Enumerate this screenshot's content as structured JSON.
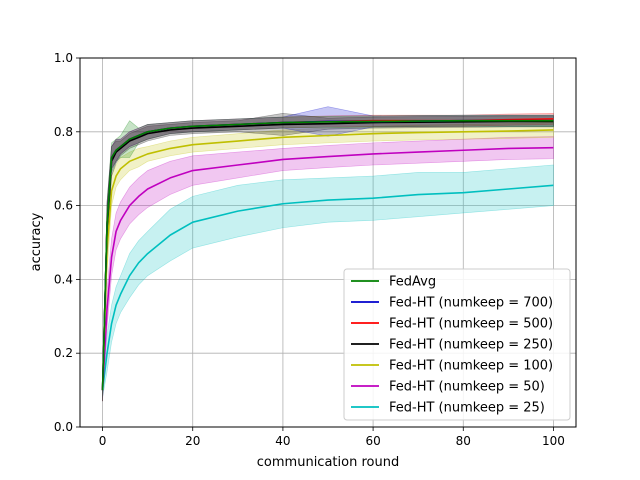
{
  "chart_data": {
    "type": "line",
    "title": "",
    "xlabel": "communication round",
    "ylabel": "accuracy",
    "xlim": [
      -5,
      105
    ],
    "ylim": [
      0.0,
      1.0
    ],
    "xticks": [
      0,
      20,
      40,
      60,
      80,
      100
    ],
    "yticks": [
      0.0,
      0.2,
      0.4,
      0.6,
      0.8,
      1.0
    ],
    "xtick_labels": [
      "0",
      "20",
      "40",
      "60",
      "80",
      "100"
    ],
    "ytick_labels": [
      "0.0",
      "0.2",
      "0.4",
      "0.6",
      "0.8",
      "1.0"
    ],
    "grid": true,
    "legend_position": "lower-right",
    "x": [
      0,
      1,
      2,
      3,
      4,
      6,
      8,
      10,
      15,
      20,
      30,
      40,
      50,
      60,
      70,
      80,
      90,
      100
    ],
    "series": [
      {
        "name": "FedAvg",
        "color": "#008000",
        "values": [
          0.1,
          0.55,
          0.73,
          0.75,
          0.76,
          0.78,
          0.79,
          0.8,
          0.81,
          0.815,
          0.82,
          0.825,
          0.827,
          0.828,
          0.829,
          0.83,
          0.83,
          0.83
        ],
        "band": [
          0.03,
          0.06,
          0.04,
          0.03,
          0.03,
          0.05,
          0.02,
          0.02,
          0.015,
          0.015,
          0.015,
          0.015,
          0.015,
          0.015,
          0.015,
          0.015,
          0.015,
          0.015
        ]
      },
      {
        "name": "Fed-HT (numkeep = 700)",
        "color": "#0000cc",
        "values": [
          0.1,
          0.55,
          0.73,
          0.75,
          0.76,
          0.78,
          0.79,
          0.8,
          0.81,
          0.815,
          0.82,
          0.825,
          0.828,
          0.828,
          0.829,
          0.83,
          0.83,
          0.83
        ],
        "band": [
          0.03,
          0.06,
          0.03,
          0.03,
          0.02,
          0.02,
          0.02,
          0.02,
          0.015,
          0.015,
          0.015,
          0.015,
          0.04,
          0.015,
          0.015,
          0.015,
          0.015,
          0.015
        ]
      },
      {
        "name": "Fed-HT (numkeep = 500)",
        "color": "#ff0000",
        "values": [
          0.1,
          0.55,
          0.73,
          0.75,
          0.76,
          0.78,
          0.79,
          0.8,
          0.81,
          0.815,
          0.82,
          0.825,
          0.828,
          0.83,
          0.83,
          0.83,
          0.833,
          0.835
        ],
        "band": [
          0.03,
          0.06,
          0.03,
          0.03,
          0.02,
          0.02,
          0.02,
          0.02,
          0.015,
          0.015,
          0.015,
          0.015,
          0.015,
          0.015,
          0.015,
          0.015,
          0.015,
          0.015
        ]
      },
      {
        "name": "Fed-HT (numkeep = 250)",
        "color": "#000000",
        "values": [
          0.1,
          0.54,
          0.72,
          0.745,
          0.755,
          0.775,
          0.785,
          0.795,
          0.805,
          0.81,
          0.815,
          0.82,
          0.822,
          0.825,
          0.826,
          0.827,
          0.828,
          0.828
        ],
        "band": [
          0.03,
          0.06,
          0.04,
          0.03,
          0.02,
          0.02,
          0.02,
          0.02,
          0.015,
          0.015,
          0.015,
          0.03,
          0.015,
          0.015,
          0.015,
          0.015,
          0.015,
          0.015
        ]
      },
      {
        "name": "Fed-HT (numkeep = 100)",
        "color": "#bfbf00",
        "values": [
          0.1,
          0.48,
          0.64,
          0.68,
          0.7,
          0.72,
          0.73,
          0.74,
          0.755,
          0.765,
          0.775,
          0.785,
          0.79,
          0.795,
          0.798,
          0.8,
          0.802,
          0.805
        ],
        "band": [
          0.03,
          0.06,
          0.04,
          0.03,
          0.03,
          0.025,
          0.025,
          0.02,
          0.02,
          0.02,
          0.02,
          0.02,
          0.02,
          0.02,
          0.02,
          0.02,
          0.02,
          0.02
        ]
      },
      {
        "name": "Fed-HT (numkeep = 50)",
        "color": "#bf00bf",
        "values": [
          0.1,
          0.32,
          0.46,
          0.53,
          0.56,
          0.6,
          0.625,
          0.645,
          0.675,
          0.695,
          0.71,
          0.725,
          0.733,
          0.74,
          0.745,
          0.75,
          0.755,
          0.757
        ],
        "band": [
          0.03,
          0.05,
          0.05,
          0.05,
          0.05,
          0.05,
          0.05,
          0.05,
          0.045,
          0.04,
          0.035,
          0.03,
          0.03,
          0.03,
          0.03,
          0.03,
          0.03,
          0.03
        ]
      },
      {
        "name": "Fed-HT (numkeep = 25)",
        "color": "#00bfbf",
        "values": [
          0.1,
          0.2,
          0.28,
          0.33,
          0.36,
          0.41,
          0.445,
          0.47,
          0.52,
          0.555,
          0.585,
          0.605,
          0.615,
          0.62,
          0.63,
          0.635,
          0.645,
          0.655
        ],
        "band": [
          0.02,
          0.05,
          0.05,
          0.05,
          0.05,
          0.06,
          0.06,
          0.06,
          0.07,
          0.07,
          0.07,
          0.065,
          0.06,
          0.06,
          0.06,
          0.055,
          0.055,
          0.055
        ]
      }
    ]
  }
}
